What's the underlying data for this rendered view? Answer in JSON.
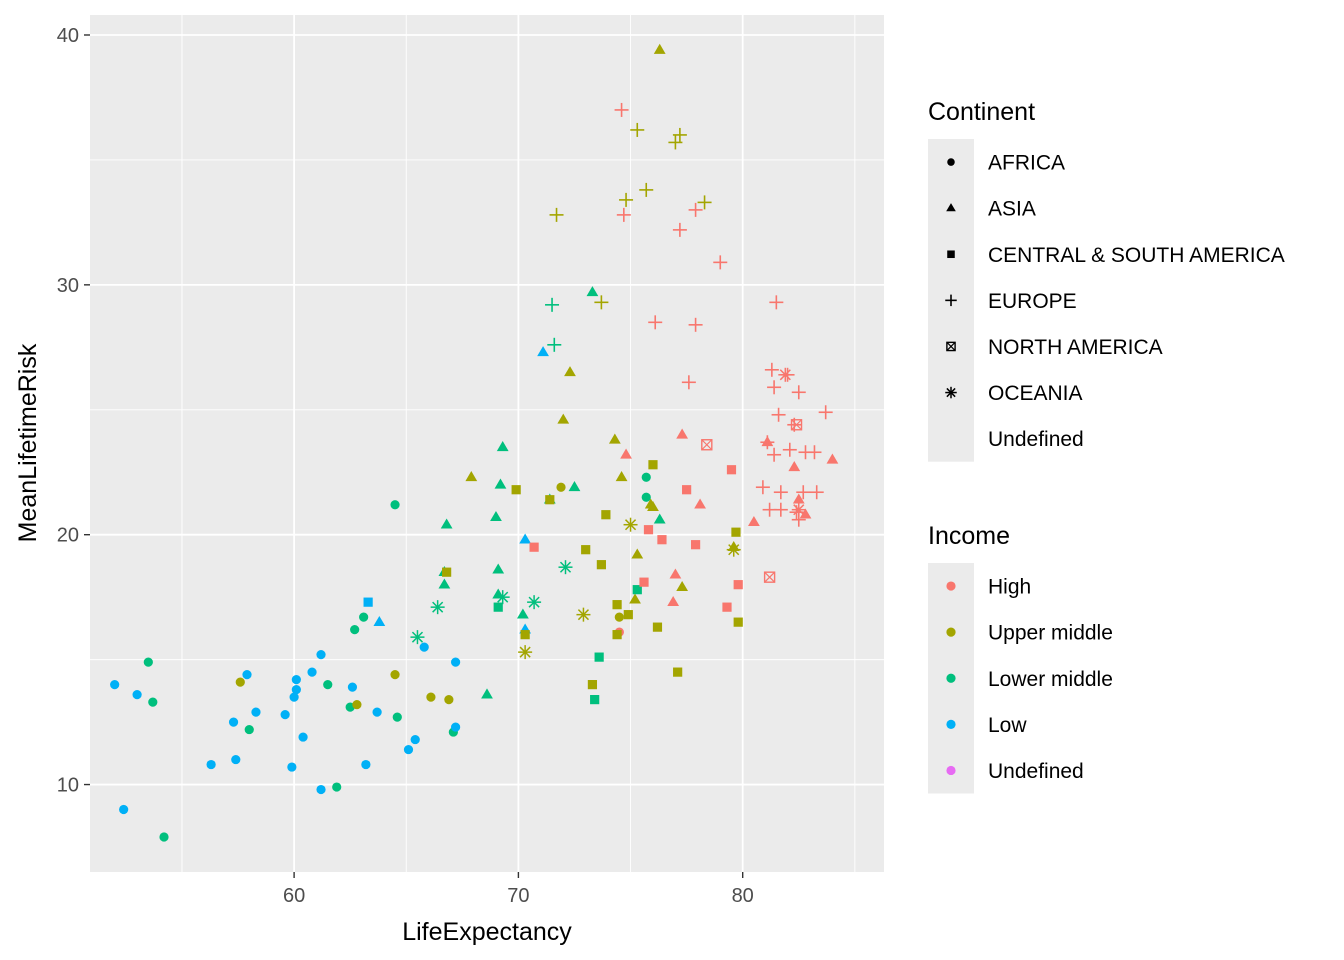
{
  "chart_data": {
    "type": "scatter",
    "xlabel": "LifeExpectancy",
    "ylabel": "MeanLifetimeRisk",
    "xlim": [
      50.9,
      86.3
    ],
    "ylim": [
      6.5,
      40.8
    ],
    "x_ticks": [
      60,
      70,
      80
    ],
    "y_ticks": [
      10,
      20,
      30,
      40
    ],
    "grid": true,
    "legend_position": "right",
    "legends": {
      "continent": {
        "title": "Continent",
        "entries": [
          {
            "key": "AFRICA",
            "label": "AFRICA"
          },
          {
            "key": "ASIA",
            "label": "ASIA"
          },
          {
            "key": "CSA",
            "label": "CENTRAL & SOUTH AMERICA"
          },
          {
            "key": "EUROPE",
            "label": "EUROPE"
          },
          {
            "key": "NA",
            "label": "NORTH AMERICA"
          },
          {
            "key": "OCEANIA",
            "label": "OCEANIA"
          },
          {
            "key": "UNDEF",
            "label": "Undefined"
          }
        ]
      },
      "income": {
        "title": "Income",
        "entries": [
          {
            "key": "H",
            "label": "High",
            "color": "#F8766D"
          },
          {
            "key": "UM",
            "label": "Upper middle",
            "color": "#A3A500"
          },
          {
            "key": "LM",
            "label": "Lower middle",
            "color": "#00BF7D"
          },
          {
            "key": "L",
            "label": "Low",
            "color": "#00B0F6"
          },
          {
            "key": "U",
            "label": "Undefined",
            "color": "#E76BF3"
          }
        ]
      }
    },
    "points": [
      {
        "x": 52.0,
        "y": 14.0,
        "c": "AFRICA",
        "i": "L"
      },
      {
        "x": 52.4,
        "y": 9.0,
        "c": "AFRICA",
        "i": "L"
      },
      {
        "x": 53.0,
        "y": 13.6,
        "c": "AFRICA",
        "i": "L"
      },
      {
        "x": 53.5,
        "y": 14.9,
        "c": "AFRICA",
        "i": "LM"
      },
      {
        "x": 53.7,
        "y": 13.3,
        "c": "AFRICA",
        "i": "LM"
      },
      {
        "x": 54.2,
        "y": 7.9,
        "c": "AFRICA",
        "i": "LM"
      },
      {
        "x": 56.3,
        "y": 10.8,
        "c": "AFRICA",
        "i": "L"
      },
      {
        "x": 57.3,
        "y": 12.5,
        "c": "AFRICA",
        "i": "L"
      },
      {
        "x": 57.4,
        "y": 11.0,
        "c": "AFRICA",
        "i": "L"
      },
      {
        "x": 57.6,
        "y": 14.1,
        "c": "AFRICA",
        "i": "UM"
      },
      {
        "x": 57.9,
        "y": 14.4,
        "c": "AFRICA",
        "i": "L"
      },
      {
        "x": 58.0,
        "y": 12.2,
        "c": "AFRICA",
        "i": "LM"
      },
      {
        "x": 58.3,
        "y": 12.9,
        "c": "AFRICA",
        "i": "L"
      },
      {
        "x": 59.6,
        "y": 12.8,
        "c": "AFRICA",
        "i": "L"
      },
      {
        "x": 59.9,
        "y": 10.7,
        "c": "AFRICA",
        "i": "L"
      },
      {
        "x": 60.0,
        "y": 13.5,
        "c": "AFRICA",
        "i": "L"
      },
      {
        "x": 60.1,
        "y": 14.2,
        "c": "AFRICA",
        "i": "L"
      },
      {
        "x": 60.1,
        "y": 13.8,
        "c": "AFRICA",
        "i": "L"
      },
      {
        "x": 60.4,
        "y": 11.9,
        "c": "AFRICA",
        "i": "L"
      },
      {
        "x": 60.8,
        "y": 14.5,
        "c": "AFRICA",
        "i": "L"
      },
      {
        "x": 61.2,
        "y": 15.2,
        "c": "AFRICA",
        "i": "L"
      },
      {
        "x": 61.2,
        "y": 9.8,
        "c": "AFRICA",
        "i": "L"
      },
      {
        "x": 61.5,
        "y": 14.0,
        "c": "AFRICA",
        "i": "LM"
      },
      {
        "x": 61.9,
        "y": 9.9,
        "c": "AFRICA",
        "i": "LM"
      },
      {
        "x": 62.5,
        "y": 13.1,
        "c": "AFRICA",
        "i": "LM"
      },
      {
        "x": 62.6,
        "y": 13.9,
        "c": "AFRICA",
        "i": "L"
      },
      {
        "x": 62.7,
        "y": 16.2,
        "c": "AFRICA",
        "i": "LM"
      },
      {
        "x": 62.8,
        "y": 13.2,
        "c": "AFRICA",
        "i": "UM"
      },
      {
        "x": 63.1,
        "y": 16.7,
        "c": "AFRICA",
        "i": "LM"
      },
      {
        "x": 63.2,
        "y": 10.8,
        "c": "AFRICA",
        "i": "L"
      },
      {
        "x": 63.7,
        "y": 12.9,
        "c": "AFRICA",
        "i": "L"
      },
      {
        "x": 64.5,
        "y": 14.4,
        "c": "AFRICA",
        "i": "UM"
      },
      {
        "x": 64.5,
        "y": 21.2,
        "c": "AFRICA",
        "i": "LM"
      },
      {
        "x": 64.6,
        "y": 12.7,
        "c": "AFRICA",
        "i": "LM"
      },
      {
        "x": 65.1,
        "y": 11.4,
        "c": "AFRICA",
        "i": "L"
      },
      {
        "x": 65.4,
        "y": 11.8,
        "c": "AFRICA",
        "i": "L"
      },
      {
        "x": 65.8,
        "y": 15.5,
        "c": "AFRICA",
        "i": "L"
      },
      {
        "x": 66.1,
        "y": 13.5,
        "c": "AFRICA",
        "i": "UM"
      },
      {
        "x": 66.9,
        "y": 13.4,
        "c": "AFRICA",
        "i": "UM"
      },
      {
        "x": 67.1,
        "y": 12.1,
        "c": "AFRICA",
        "i": "LM"
      },
      {
        "x": 67.2,
        "y": 12.3,
        "c": "AFRICA",
        "i": "L"
      },
      {
        "x": 67.2,
        "y": 14.9,
        "c": "AFRICA",
        "i": "L"
      },
      {
        "x": 71.9,
        "y": 21.9,
        "c": "AFRICA",
        "i": "UM"
      },
      {
        "x": 74.5,
        "y": 16.7,
        "c": "AFRICA",
        "i": "UM"
      },
      {
        "x": 74.5,
        "y": 16.1,
        "c": "AFRICA",
        "i": "H"
      },
      {
        "x": 75.7,
        "y": 22.3,
        "c": "AFRICA",
        "i": "LM"
      },
      {
        "x": 75.7,
        "y": 21.5,
        "c": "AFRICA",
        "i": "LM"
      },
      {
        "x": 63.8,
        "y": 16.5,
        "c": "ASIA",
        "i": "L"
      },
      {
        "x": 66.7,
        "y": 18.5,
        "c": "ASIA",
        "i": "LM"
      },
      {
        "x": 66.7,
        "y": 18.0,
        "c": "ASIA",
        "i": "LM"
      },
      {
        "x": 66.8,
        "y": 20.4,
        "c": "ASIA",
        "i": "LM"
      },
      {
        "x": 67.9,
        "y": 22.3,
        "c": "ASIA",
        "i": "UM"
      },
      {
        "x": 68.6,
        "y": 13.6,
        "c": "ASIA",
        "i": "LM"
      },
      {
        "x": 69.0,
        "y": 20.7,
        "c": "ASIA",
        "i": "LM"
      },
      {
        "x": 69.1,
        "y": 18.6,
        "c": "ASIA",
        "i": "LM"
      },
      {
        "x": 69.2,
        "y": 22.0,
        "c": "ASIA",
        "i": "LM"
      },
      {
        "x": 69.3,
        "y": 23.5,
        "c": "ASIA",
        "i": "LM"
      },
      {
        "x": 69.1,
        "y": 17.6,
        "c": "ASIA",
        "i": "LM"
      },
      {
        "x": 70.2,
        "y": 16.8,
        "c": "ASIA",
        "i": "LM"
      },
      {
        "x": 70.3,
        "y": 16.2,
        "c": "ASIA",
        "i": "L"
      },
      {
        "x": 70.3,
        "y": 19.8,
        "c": "ASIA",
        "i": "L"
      },
      {
        "x": 71.1,
        "y": 27.3,
        "c": "ASIA",
        "i": "L"
      },
      {
        "x": 71.4,
        "y": 21.4,
        "c": "ASIA",
        "i": "LM"
      },
      {
        "x": 72.0,
        "y": 24.6,
        "c": "ASIA",
        "i": "UM"
      },
      {
        "x": 72.3,
        "y": 26.5,
        "c": "ASIA",
        "i": "UM"
      },
      {
        "x": 72.5,
        "y": 21.9,
        "c": "ASIA",
        "i": "LM"
      },
      {
        "x": 73.3,
        "y": 29.7,
        "c": "ASIA",
        "i": "LM"
      },
      {
        "x": 74.3,
        "y": 23.8,
        "c": "ASIA",
        "i": "UM"
      },
      {
        "x": 74.6,
        "y": 22.3,
        "c": "ASIA",
        "i": "UM"
      },
      {
        "x": 74.8,
        "y": 23.2,
        "c": "ASIA",
        "i": "H"
      },
      {
        "x": 75.2,
        "y": 17.4,
        "c": "ASIA",
        "i": "UM"
      },
      {
        "x": 75.3,
        "y": 19.2,
        "c": "ASIA",
        "i": "UM"
      },
      {
        "x": 75.9,
        "y": 21.2,
        "c": "ASIA",
        "i": "UM"
      },
      {
        "x": 76.0,
        "y": 21.1,
        "c": "ASIA",
        "i": "UM"
      },
      {
        "x": 76.3,
        "y": 39.4,
        "c": "ASIA",
        "i": "UM"
      },
      {
        "x": 76.3,
        "y": 20.6,
        "c": "ASIA",
        "i": "LM"
      },
      {
        "x": 76.9,
        "y": 17.3,
        "c": "ASIA",
        "i": "H"
      },
      {
        "x": 77.0,
        "y": 18.4,
        "c": "ASIA",
        "i": "H"
      },
      {
        "x": 77.3,
        "y": 17.9,
        "c": "ASIA",
        "i": "UM"
      },
      {
        "x": 77.3,
        "y": 24.0,
        "c": "ASIA",
        "i": "H"
      },
      {
        "x": 78.1,
        "y": 21.2,
        "c": "ASIA",
        "i": "H"
      },
      {
        "x": 79.6,
        "y": 19.5,
        "c": "ASIA",
        "i": "UM"
      },
      {
        "x": 80.5,
        "y": 20.5,
        "c": "ASIA",
        "i": "H"
      },
      {
        "x": 81.1,
        "y": 23.7,
        "c": "ASIA",
        "i": "H"
      },
      {
        "x": 82.3,
        "y": 22.7,
        "c": "ASIA",
        "i": "H"
      },
      {
        "x": 82.5,
        "y": 21.4,
        "c": "ASIA",
        "i": "H"
      },
      {
        "x": 82.8,
        "y": 20.8,
        "c": "ASIA",
        "i": "H"
      },
      {
        "x": 84.0,
        "y": 23.0,
        "c": "ASIA",
        "i": "H"
      },
      {
        "x": 63.3,
        "y": 17.3,
        "c": "CSA",
        "i": "L"
      },
      {
        "x": 66.8,
        "y": 18.5,
        "c": "CSA",
        "i": "UM"
      },
      {
        "x": 69.1,
        "y": 17.1,
        "c": "CSA",
        "i": "LM"
      },
      {
        "x": 69.9,
        "y": 21.8,
        "c": "CSA",
        "i": "UM"
      },
      {
        "x": 70.3,
        "y": 16.0,
        "c": "CSA",
        "i": "UM"
      },
      {
        "x": 70.7,
        "y": 19.5,
        "c": "CSA",
        "i": "H"
      },
      {
        "x": 71.4,
        "y": 21.4,
        "c": "CSA",
        "i": "UM"
      },
      {
        "x": 73.0,
        "y": 19.4,
        "c": "CSA",
        "i": "UM"
      },
      {
        "x": 73.3,
        "y": 14.0,
        "c": "CSA",
        "i": "UM"
      },
      {
        "x": 73.4,
        "y": 13.4,
        "c": "CSA",
        "i": "LM"
      },
      {
        "x": 73.6,
        "y": 15.1,
        "c": "CSA",
        "i": "LM"
      },
      {
        "x": 73.7,
        "y": 18.8,
        "c": "CSA",
        "i": "UM"
      },
      {
        "x": 73.9,
        "y": 20.8,
        "c": "CSA",
        "i": "UM"
      },
      {
        "x": 74.4,
        "y": 17.2,
        "c": "CSA",
        "i": "UM"
      },
      {
        "x": 74.4,
        "y": 16.0,
        "c": "CSA",
        "i": "UM"
      },
      {
        "x": 74.9,
        "y": 16.8,
        "c": "CSA",
        "i": "UM"
      },
      {
        "x": 75.3,
        "y": 17.8,
        "c": "CSA",
        "i": "LM"
      },
      {
        "x": 75.6,
        "y": 18.1,
        "c": "CSA",
        "i": "H"
      },
      {
        "x": 75.8,
        "y": 20.2,
        "c": "CSA",
        "i": "H"
      },
      {
        "x": 76.0,
        "y": 22.8,
        "c": "CSA",
        "i": "UM"
      },
      {
        "x": 76.2,
        "y": 16.3,
        "c": "CSA",
        "i": "UM"
      },
      {
        "x": 76.4,
        "y": 19.8,
        "c": "CSA",
        "i": "H"
      },
      {
        "x": 77.1,
        "y": 14.5,
        "c": "CSA",
        "i": "UM"
      },
      {
        "x": 77.5,
        "y": 21.8,
        "c": "CSA",
        "i": "H"
      },
      {
        "x": 77.9,
        "y": 19.6,
        "c": "CSA",
        "i": "H"
      },
      {
        "x": 79.3,
        "y": 17.1,
        "c": "CSA",
        "i": "H"
      },
      {
        "x": 79.5,
        "y": 22.6,
        "c": "CSA",
        "i": "H"
      },
      {
        "x": 79.7,
        "y": 20.1,
        "c": "CSA",
        "i": "UM"
      },
      {
        "x": 79.8,
        "y": 18.0,
        "c": "CSA",
        "i": "H"
      },
      {
        "x": 79.8,
        "y": 16.5,
        "c": "CSA",
        "i": "UM"
      },
      {
        "x": 71.5,
        "y": 29.2,
        "c": "EUROPE",
        "i": "LM"
      },
      {
        "x": 71.6,
        "y": 27.6,
        "c": "EUROPE",
        "i": "LM"
      },
      {
        "x": 71.7,
        "y": 32.8,
        "c": "EUROPE",
        "i": "UM"
      },
      {
        "x": 73.7,
        "y": 29.3,
        "c": "EUROPE",
        "i": "UM"
      },
      {
        "x": 74.6,
        "y": 37.0,
        "c": "EUROPE",
        "i": "H"
      },
      {
        "x": 74.7,
        "y": 32.8,
        "c": "EUROPE",
        "i": "H"
      },
      {
        "x": 74.8,
        "y": 33.4,
        "c": "EUROPE",
        "i": "UM"
      },
      {
        "x": 75.3,
        "y": 36.2,
        "c": "EUROPE",
        "i": "UM"
      },
      {
        "x": 75.7,
        "y": 33.8,
        "c": "EUROPE",
        "i": "UM"
      },
      {
        "x": 76.1,
        "y": 28.5,
        "c": "EUROPE",
        "i": "H"
      },
      {
        "x": 77.0,
        "y": 35.7,
        "c": "EUROPE",
        "i": "UM"
      },
      {
        "x": 77.2,
        "y": 36.0,
        "c": "EUROPE",
        "i": "UM"
      },
      {
        "x": 77.2,
        "y": 32.2,
        "c": "EUROPE",
        "i": "H"
      },
      {
        "x": 77.6,
        "y": 26.1,
        "c": "EUROPE",
        "i": "H"
      },
      {
        "x": 77.9,
        "y": 28.4,
        "c": "EUROPE",
        "i": "H"
      },
      {
        "x": 77.9,
        "y": 33.0,
        "c": "EUROPE",
        "i": "H"
      },
      {
        "x": 78.3,
        "y": 33.3,
        "c": "EUROPE",
        "i": "UM"
      },
      {
        "x": 79.0,
        "y": 30.9,
        "c": "EUROPE",
        "i": "H"
      },
      {
        "x": 80.9,
        "y": 21.9,
        "c": "EUROPE",
        "i": "H"
      },
      {
        "x": 81.1,
        "y": 23.7,
        "c": "EUROPE",
        "i": "H"
      },
      {
        "x": 81.2,
        "y": 21.0,
        "c": "EUROPE",
        "i": "H"
      },
      {
        "x": 81.3,
        "y": 26.6,
        "c": "EUROPE",
        "i": "H"
      },
      {
        "x": 81.4,
        "y": 25.9,
        "c": "EUROPE",
        "i": "H"
      },
      {
        "x": 81.4,
        "y": 23.2,
        "c": "EUROPE",
        "i": "H"
      },
      {
        "x": 81.5,
        "y": 29.3,
        "c": "EUROPE",
        "i": "H"
      },
      {
        "x": 81.6,
        "y": 24.8,
        "c": "EUROPE",
        "i": "H"
      },
      {
        "x": 81.7,
        "y": 21.7,
        "c": "EUROPE",
        "i": "H"
      },
      {
        "x": 81.7,
        "y": 21.0,
        "c": "EUROPE",
        "i": "H"
      },
      {
        "x": 82.0,
        "y": 26.4,
        "c": "EUROPE",
        "i": "H"
      },
      {
        "x": 82.1,
        "y": 23.4,
        "c": "EUROPE",
        "i": "H"
      },
      {
        "x": 82.3,
        "y": 24.4,
        "c": "EUROPE",
        "i": "H"
      },
      {
        "x": 82.4,
        "y": 20.9,
        "c": "EUROPE",
        "i": "H"
      },
      {
        "x": 82.5,
        "y": 25.7,
        "c": "EUROPE",
        "i": "H"
      },
      {
        "x": 82.5,
        "y": 20.6,
        "c": "EUROPE",
        "i": "H"
      },
      {
        "x": 82.7,
        "y": 21.7,
        "c": "EUROPE",
        "i": "H"
      },
      {
        "x": 82.8,
        "y": 23.3,
        "c": "EUROPE",
        "i": "H"
      },
      {
        "x": 83.2,
        "y": 23.3,
        "c": "EUROPE",
        "i": "H"
      },
      {
        "x": 83.3,
        "y": 21.7,
        "c": "EUROPE",
        "i": "H"
      },
      {
        "x": 83.7,
        "y": 24.9,
        "c": "EUROPE",
        "i": "H"
      },
      {
        "x": 78.4,
        "y": 23.6,
        "c": "NA",
        "i": "H"
      },
      {
        "x": 81.2,
        "y": 18.3,
        "c": "NA",
        "i": "H"
      },
      {
        "x": 82.4,
        "y": 24.4,
        "c": "NA",
        "i": "H"
      },
      {
        "x": 65.5,
        "y": 15.9,
        "c": "OCEANIA",
        "i": "LM"
      },
      {
        "x": 66.4,
        "y": 17.1,
        "c": "OCEANIA",
        "i": "LM"
      },
      {
        "x": 69.3,
        "y": 17.5,
        "c": "OCEANIA",
        "i": "LM"
      },
      {
        "x": 70.3,
        "y": 15.3,
        "c": "OCEANIA",
        "i": "UM"
      },
      {
        "x": 70.7,
        "y": 17.3,
        "c": "OCEANIA",
        "i": "LM"
      },
      {
        "x": 72.1,
        "y": 18.7,
        "c": "OCEANIA",
        "i": "LM"
      },
      {
        "x": 72.9,
        "y": 16.8,
        "c": "OCEANIA",
        "i": "UM"
      },
      {
        "x": 75.0,
        "y": 20.4,
        "c": "OCEANIA",
        "i": "UM"
      },
      {
        "x": 79.6,
        "y": 19.4,
        "c": "OCEANIA",
        "i": "UM"
      },
      {
        "x": 81.9,
        "y": 26.4,
        "c": "OCEANIA",
        "i": "H"
      },
      {
        "x": 82.5,
        "y": 21.0,
        "c": "OCEANIA",
        "i": "H"
      }
    ]
  }
}
